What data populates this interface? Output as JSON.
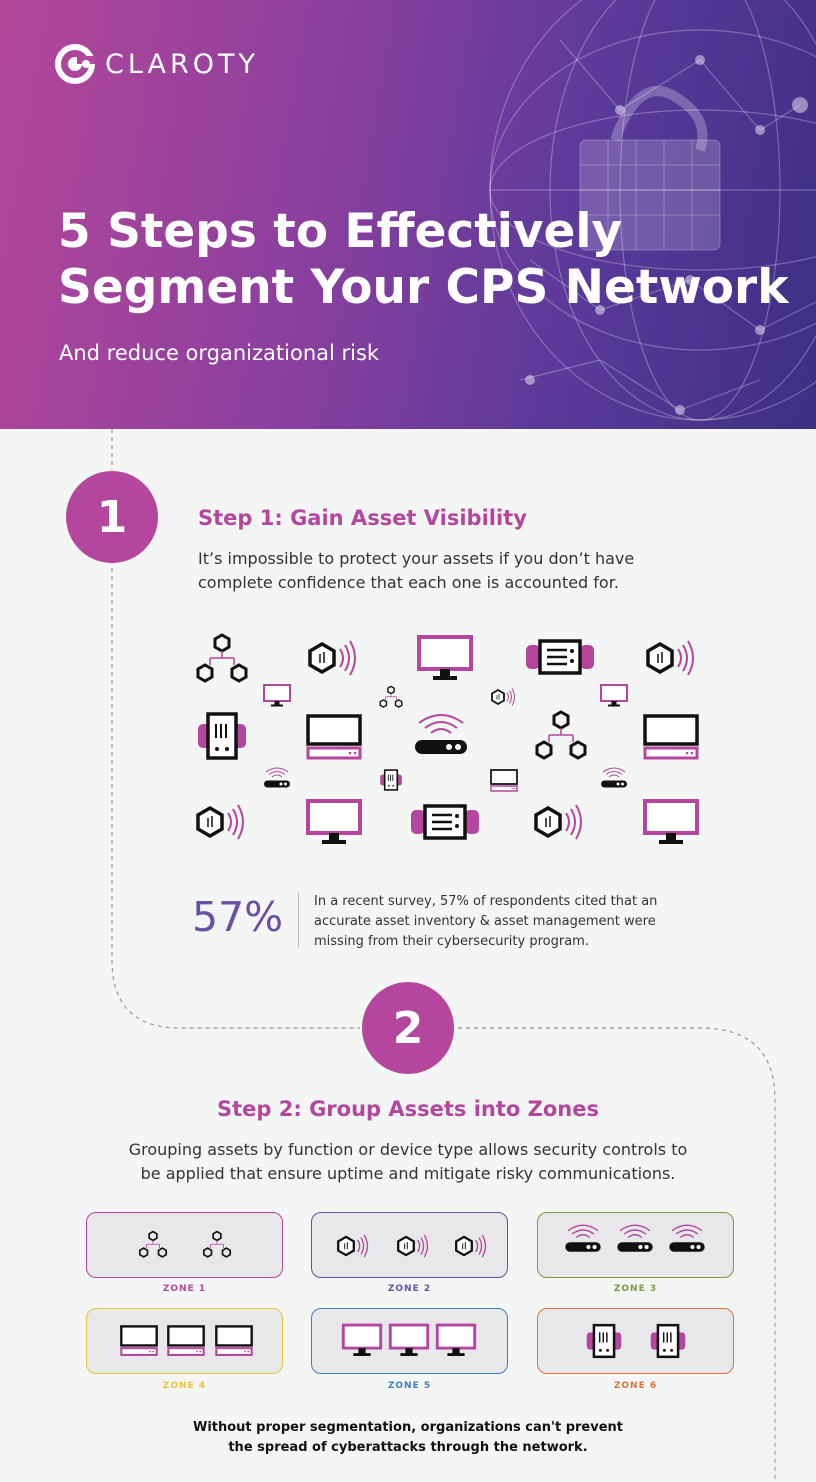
{
  "brand": {
    "name": "CLAROTY",
    "logo_icon": "claroty-logo-icon"
  },
  "header": {
    "title_line1": "5 Steps to Effectively",
    "title_line2": "Segment Your CPS Network",
    "subtitle": "And reduce organizational risk"
  },
  "step1": {
    "number": "1",
    "title": "Step 1: Gain Asset Visibility",
    "text_line1": "It’s impossible to protect your assets if you don’t have",
    "text_line2": "complete confidence that each one is accounted for.",
    "stat_value": "57%",
    "stat_line1": "In a recent survey, 57% of respondents cited that an",
    "stat_line2": "accurate asset inventory & asset management were",
    "stat_line3": "missing from their cybersecurity program."
  },
  "step2": {
    "number": "2",
    "title": "Step 2: Group Assets into Zones",
    "text_line1": "Grouping assets by function or device type allows security controls to",
    "text_line2": "be applied that ensure uptime and mitigate risky communications.",
    "zones": [
      {
        "label": "ZONE 1",
        "color": "#b4479d"
      },
      {
        "label": "ZONE 2",
        "color": "#6a4fa5"
      },
      {
        "label": "ZONE 3",
        "color": "#7c9a3e"
      },
      {
        "label": "ZONE 4",
        "color": "#e9c53a"
      },
      {
        "label": "ZONE 5",
        "color": "#3f7fbf"
      },
      {
        "label": "ZONE 6",
        "color": "#e0713a"
      }
    ],
    "footer_line1": "Without proper segmentation, organizations can't prevent",
    "footer_line2": "the spread of cyberattacks through the network."
  },
  "colors": {
    "accent": "#b4479d",
    "purple": "#6a4fa5",
    "background": "#f4f5f5"
  }
}
